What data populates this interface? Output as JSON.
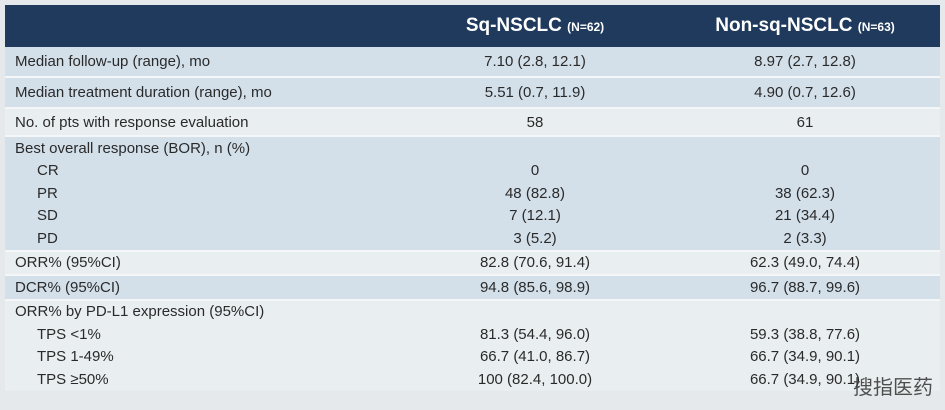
{
  "header": {
    "columns": [
      {
        "name": "Sq-NSCLC",
        "n": "(N=62)"
      },
      {
        "name": "Non-sq-NSCLC",
        "n": "(N=63)"
      }
    ]
  },
  "table": {
    "rows": [
      [
        "Median follow-up (range), mo",
        "7.10 (2.8, 12.1)",
        "8.97 (2.7, 12.8)"
      ],
      [
        "Median treatment duration (range), mo",
        "5.51 (0.7, 11.9)",
        "4.90 (0.7, 12.6)"
      ],
      [
        "No. of pts with response evaluation",
        "58",
        "61"
      ],
      [
        "Best overall response (BOR), n (%)",
        "",
        ""
      ],
      [
        "CR",
        "0",
        "0"
      ],
      [
        "PR",
        "48 (82.8)",
        "38 (62.3)"
      ],
      [
        "SD",
        "7 (12.1)",
        "21 (34.4)"
      ],
      [
        "PD",
        "3 (5.2)",
        "2 (3.3)"
      ],
      [
        "ORR% (95%CI)",
        "82.8 (70.6, 91.4)",
        "62.3 (49.0, 74.4)"
      ],
      [
        "DCR% (95%CI)",
        "94.8 (85.6, 98.9)",
        "96.7 (88.7, 99.6)"
      ],
      [
        "ORR% by PD-L1 expression (95%CI)",
        "",
        ""
      ],
      [
        "TPS <1%",
        "81.3 (54.4, 96.0)",
        "59.3 (38.8, 77.6)"
      ],
      [
        "TPS 1-49%",
        "66.7 (41.0, 86.7)",
        "66.7 (34.9, 90.1)"
      ],
      [
        "TPS ≥50%",
        "100 (82.4, 100.0)",
        "66.7 (34.9, 90.1)"
      ]
    ]
  },
  "watermark": "搜指医药"
}
